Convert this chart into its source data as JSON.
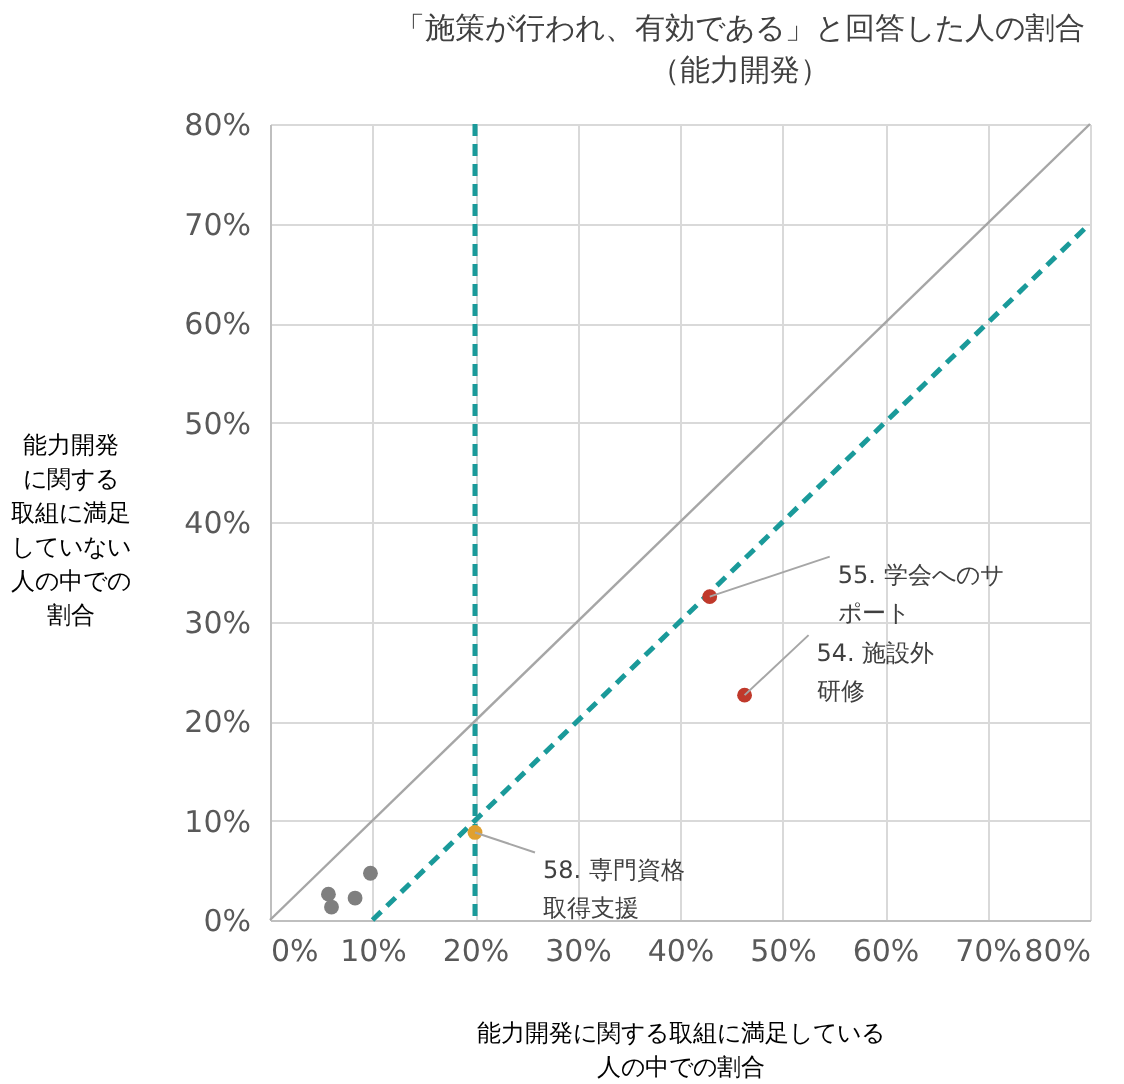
{
  "chart_data": {
    "type": "scatter",
    "title": [
      "「施策が行われ、有効である」と回答した人の割合",
      "（能力開発）"
    ],
    "xlabel": "能力開発に関する取組に満足している人の中での割合",
    "ylabel": "能力開発に関する取組に満足していない人の中での割合",
    "series": [
      {
        "type": "line",
        "color": "#a6a6a6",
        "line_style": "solid",
        "marker": "none",
        "x": [
          0,
          80
        ],
        "values": [
          0,
          80
        ]
      },
      {
        "type": "line",
        "color": "#1a9a9a",
        "line_style": "dashed",
        "marker": "none",
        "x": [
          10,
          80
        ],
        "values": [
          0,
          70
        ]
      },
      {
        "color": "#7f7f7f",
        "x": [
          5.7,
          6.0,
          8.3,
          9.8
        ],
        "values": [
          2.6,
          1.3,
          2.2,
          4.7
        ]
      },
      {
        "color": "#c0392b",
        "x": [
          42.9,
          46.3
        ],
        "values": [
          32.5,
          22.6
        ]
      },
      {
        "color": "#e0a030",
        "x": [
          20.0
        ],
        "values": [
          8.8
        ]
      }
    ],
    "ref_lines": [
      {
        "axis": "x",
        "value": 20,
        "color": "#1a9a9a",
        "line_style": "dashed"
      }
    ],
    "annotations": [
      {
        "text": "55. 学会へのサポート",
        "x": 42.9,
        "y": 32.5
      },
      {
        "text": "54. 施設外研修",
        "x": 46.3,
        "y": 22.6
      },
      {
        "text": "58. 専門資格取得支援",
        "x": 20.0,
        "y": 8.8
      }
    ],
    "xlim": [
      0,
      80
    ],
    "ylim": [
      0,
      80
    ],
    "xticks": [
      {
        "value": 0,
        "label": "0%"
      },
      {
        "value": 10,
        "label": "10%"
      },
      {
        "value": 20,
        "label": "20%"
      },
      {
        "value": 30,
        "label": "30%"
      },
      {
        "value": 40,
        "label": "40%"
      },
      {
        "value": 50,
        "label": "50%"
      },
      {
        "value": 60,
        "label": "60%"
      },
      {
        "value": 70,
        "label": "70%"
      },
      {
        "value": 80,
        "label": "80%"
      }
    ],
    "yticks": [
      {
        "value": 0,
        "label": "0%"
      },
      {
        "value": 10,
        "label": "10%"
      },
      {
        "value": 20,
        "label": "20%"
      },
      {
        "value": 30,
        "label": "30%"
      },
      {
        "value": 40,
        "label": "40%"
      },
      {
        "value": 50,
        "label": "50%"
      },
      {
        "value": 60,
        "label": "60%"
      },
      {
        "value": 70,
        "label": "70%"
      },
      {
        "value": 80,
        "label": "80%"
      }
    ],
    "grid": true,
    "marker": "circle"
  }
}
